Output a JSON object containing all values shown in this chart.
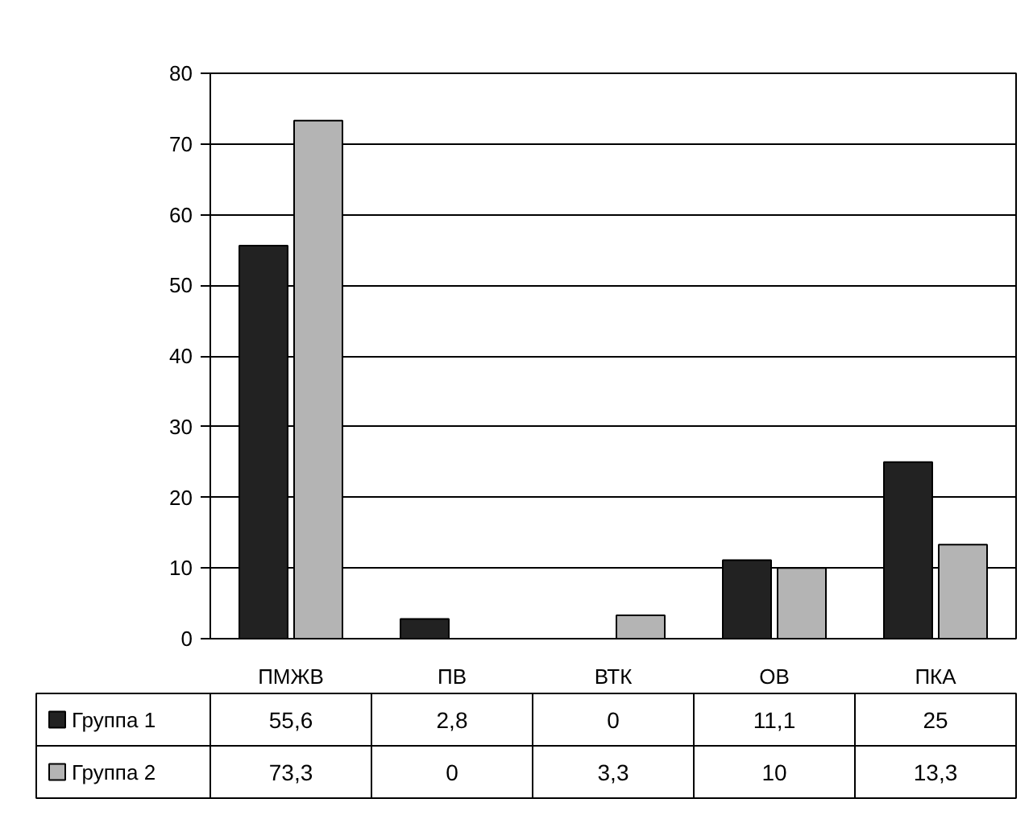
{
  "chart_data": {
    "type": "bar",
    "categories": [
      "ПМЖВ",
      "ПВ",
      "ВТК",
      "ОВ",
      "ПКА"
    ],
    "series": [
      {
        "name": "Группа 1",
        "color": "#222222",
        "values": [
          55.6,
          2.8,
          0,
          11.1,
          25
        ],
        "value_labels": [
          "55,6",
          "2,8",
          "0",
          "11,1",
          "25"
        ]
      },
      {
        "name": "Группа 2",
        "color": "#b4b4b4",
        "values": [
          73.3,
          0,
          3.3,
          10,
          13.3
        ],
        "value_labels": [
          "73,3",
          "0",
          "3,3",
          "10",
          "13,3"
        ]
      }
    ],
    "ylim": [
      0,
      80
    ],
    "yticks": [
      0,
      10,
      20,
      30,
      40,
      50,
      60,
      70,
      80
    ],
    "grid": "y",
    "legend": "bottom"
  }
}
